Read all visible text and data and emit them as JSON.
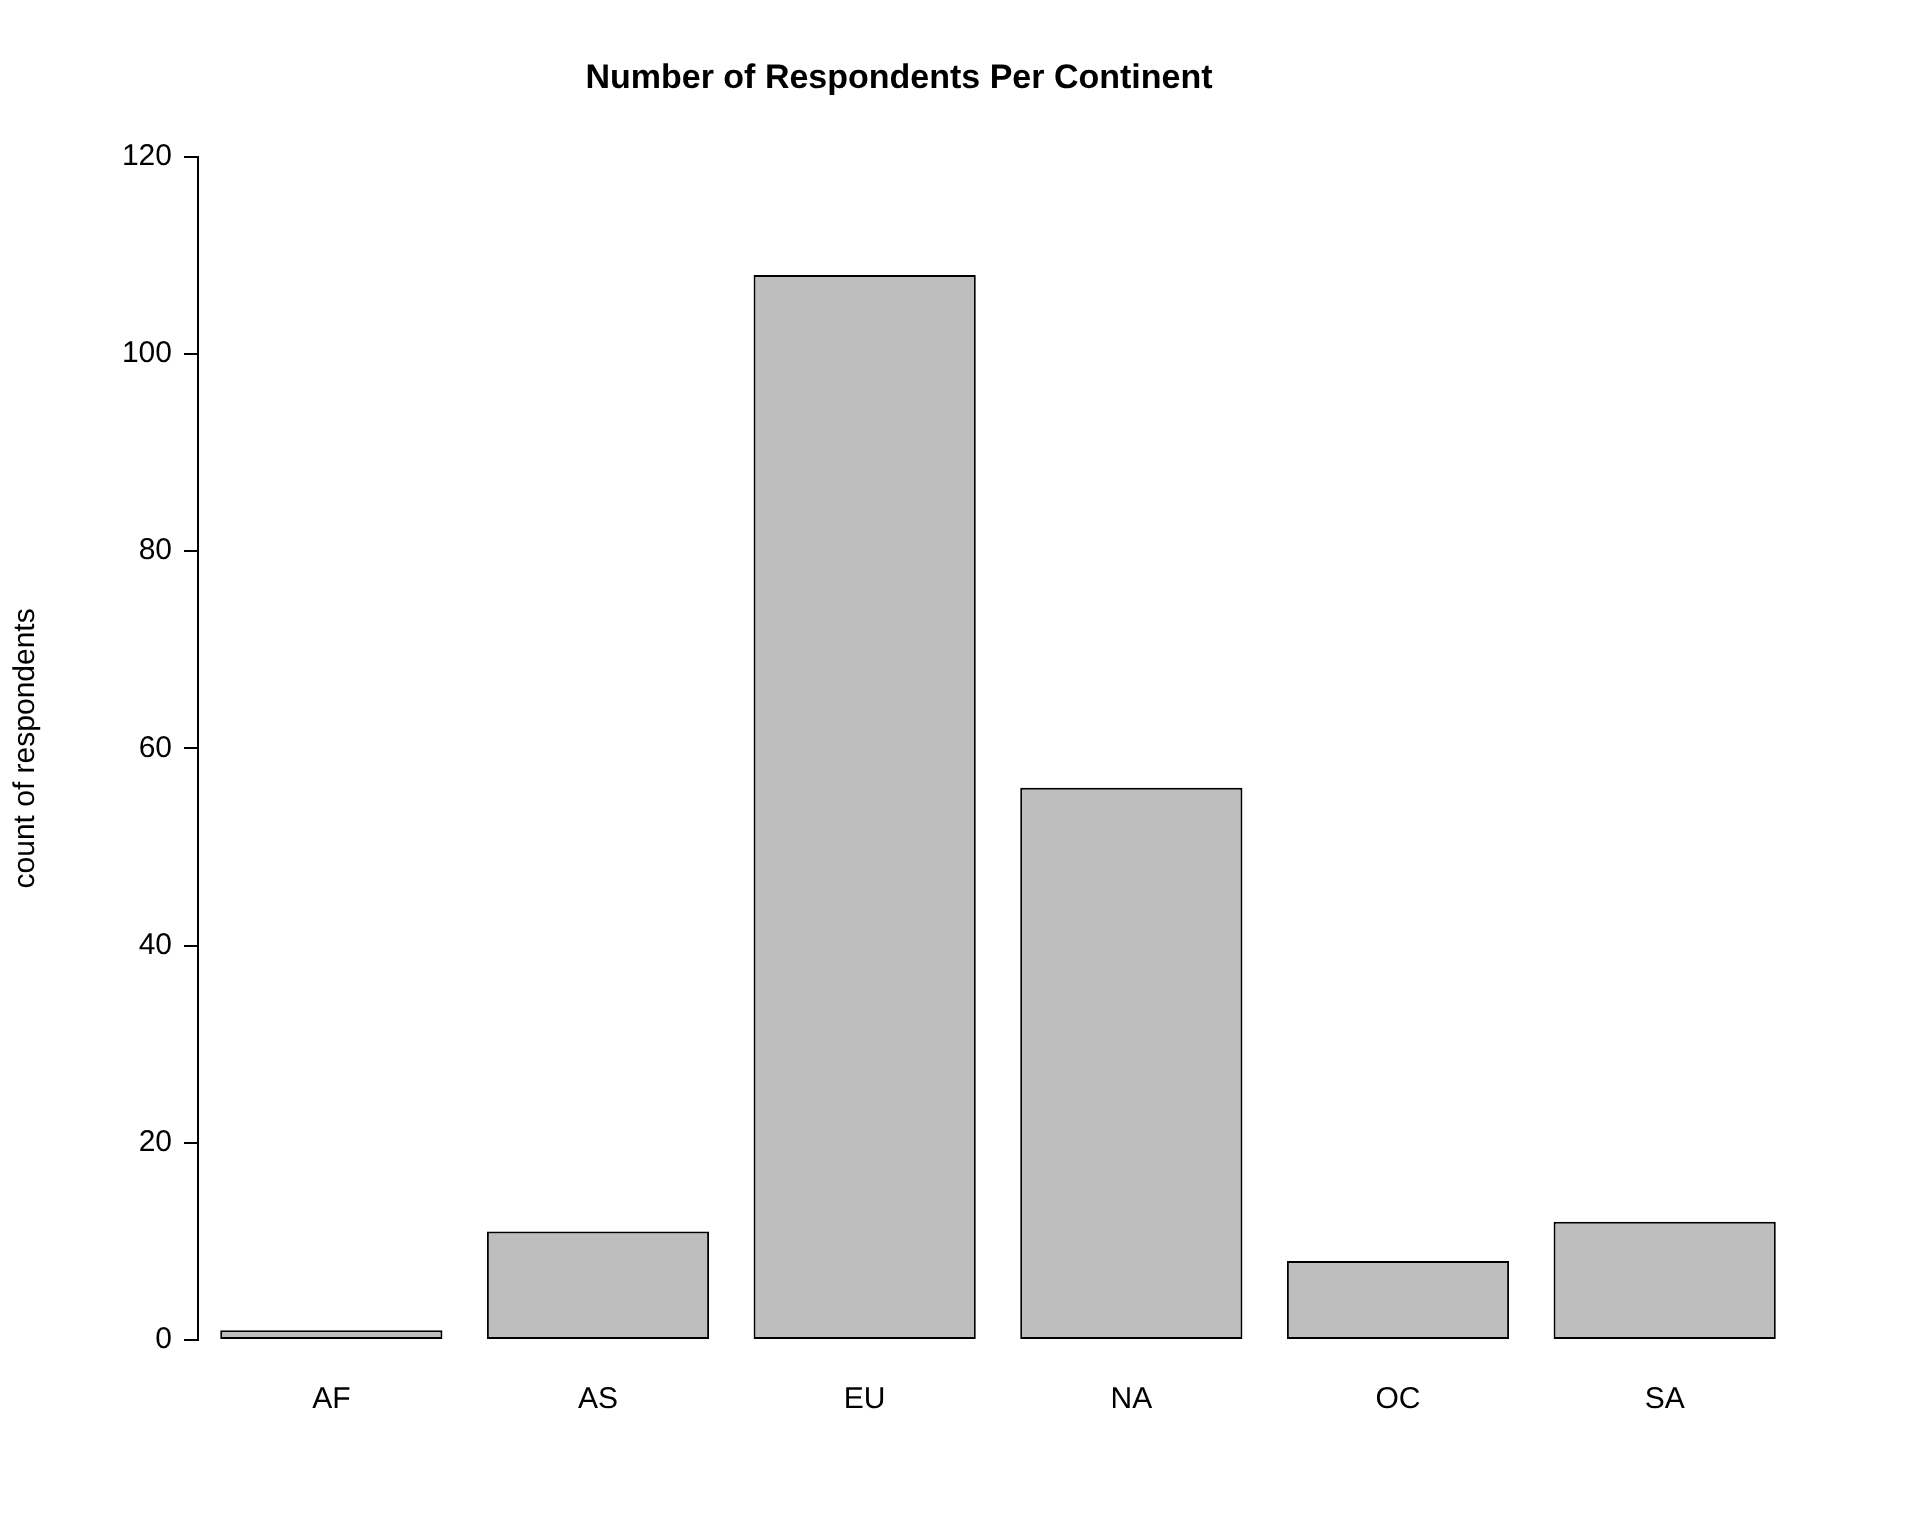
{
  "chart_data": {
    "type": "bar",
    "title": "Number of Respondents Per Continent",
    "ylabel": "count of respondents",
    "categories": [
      "AF",
      "AS",
      "EU",
      "NA",
      "OC",
      "SA"
    ],
    "values": [
      1,
      11,
      108,
      56,
      8,
      12
    ],
    "color": "#bebebe",
    "ylim": [
      0,
      120
    ],
    "yticks": [
      0,
      20,
      40,
      60,
      80,
      100,
      120
    ]
  }
}
